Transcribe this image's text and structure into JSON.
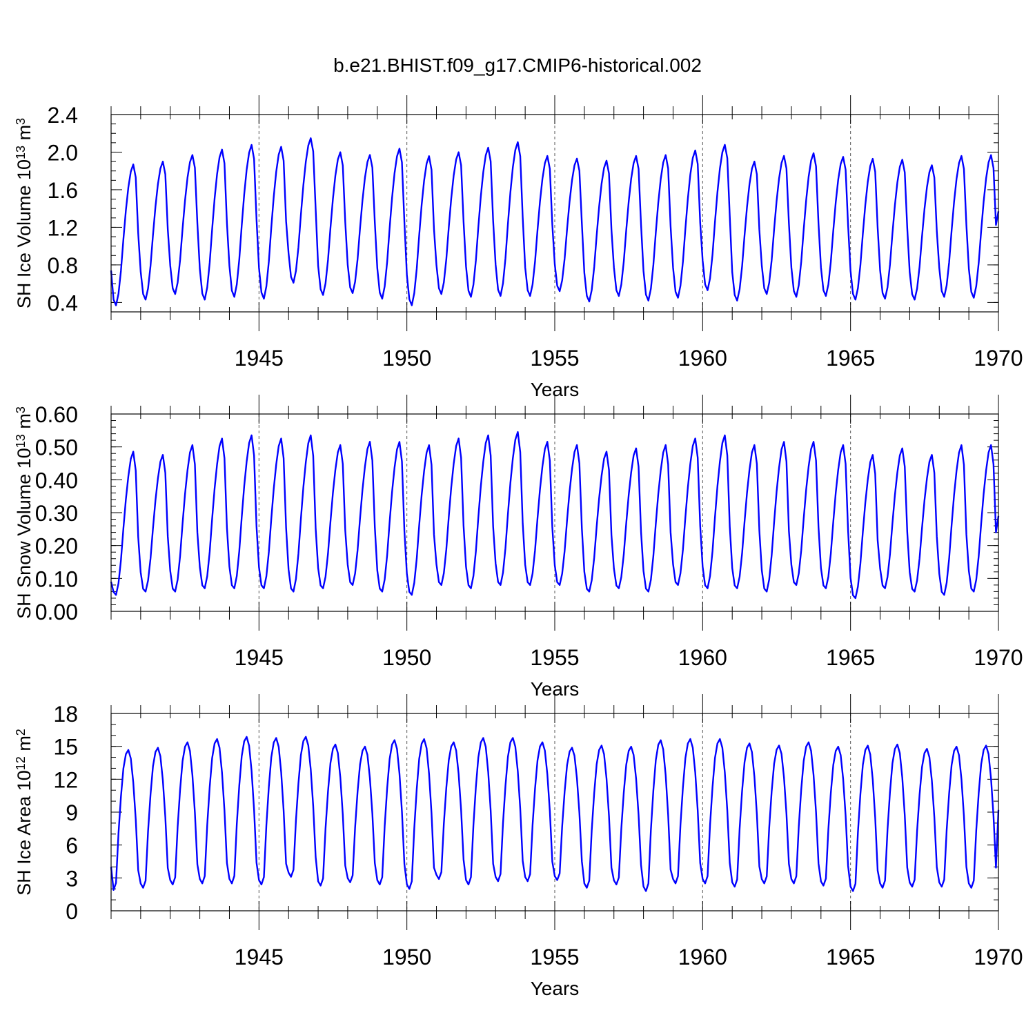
{
  "title": "b.e21.BHIST.f09_g17.CMIP6-historical.002",
  "colors": {
    "series": "#0000ff",
    "axis": "#000000"
  },
  "chart_data": [
    {
      "type": "line",
      "ylabel": "SH Ice Volume 10",
      "ylabel_exp": "13",
      "ylabel_unit": "m",
      "ylabel_unit_exp": "3",
      "xlabel": "Years",
      "xlim": [
        1940.0,
        1970.0
      ],
      "ylim": [
        0.3,
        2.4
      ],
      "yticks": [
        0.4,
        0.8,
        1.2,
        1.6,
        2.0,
        2.4
      ],
      "ytick_labels": [
        "0.4",
        "0.8",
        "1.2",
        "1.6",
        "2.0",
        "2.4"
      ],
      "ytick_minor": 0.1,
      "xticks": [
        1945,
        1950,
        1955,
        1960,
        1965,
        1970
      ],
      "xtick_labels": [
        "1945",
        "1950",
        "1955",
        "1960",
        "1965",
        "1970"
      ],
      "start_year": 1940,
      "monthly_shape": [
        0.2,
        0.04,
        0.0,
        0.08,
        0.24,
        0.46,
        0.66,
        0.82,
        0.93,
        0.98,
        0.89,
        0.5
      ],
      "annual_max": [
        1.9,
        1.93,
        2.0,
        2.06,
        2.11,
        2.09,
        2.18,
        2.03,
        2.0,
        2.07,
        1.99,
        2.03,
        2.08,
        2.14,
        1.99,
        1.96,
        1.94,
        1.99,
        2.0,
        2.05,
        2.11,
        1.93,
        1.99,
        2.02,
        1.98,
        1.96,
        1.95,
        1.89,
        1.99,
        2.0
      ],
      "annual_min": [
        0.37,
        0.43,
        0.49,
        0.43,
        0.46,
        0.44,
        0.61,
        0.48,
        0.5,
        0.44,
        0.37,
        0.49,
        0.46,
        0.47,
        0.47,
        0.52,
        0.41,
        0.47,
        0.42,
        0.45,
        0.53,
        0.42,
        0.49,
        0.46,
        0.47,
        0.43,
        0.44,
        0.43,
        0.46,
        0.45
      ],
      "first_value": 0.74,
      "last_value": 1.37
    },
    {
      "type": "line",
      "ylabel": "SH Snow Volume 10",
      "ylabel_exp": "13",
      "ylabel_unit": "m",
      "ylabel_unit_exp": "3",
      "xlabel": "Years",
      "xlim": [
        1940.0,
        1970.0
      ],
      "ylim": [
        0.0,
        0.6
      ],
      "yticks": [
        0.0,
        0.1,
        0.2,
        0.3,
        0.4,
        0.5,
        0.6
      ],
      "ytick_labels": [
        "0.00",
        "0.10",
        "0.20",
        "0.30",
        "0.40",
        "0.50",
        "0.60"
      ],
      "ytick_minor": 0.02,
      "xticks": [
        1945,
        1950,
        1955,
        1960,
        1965,
        1970
      ],
      "xtick_labels": [
        "1945",
        "1950",
        "1955",
        "1960",
        "1965",
        "1970"
      ],
      "start_year": 1940,
      "monthly_shape": [
        0.14,
        0.02,
        0.0,
        0.08,
        0.24,
        0.46,
        0.66,
        0.82,
        0.94,
        0.99,
        0.86,
        0.4
      ],
      "annual_max": [
        0.49,
        0.48,
        0.51,
        0.53,
        0.54,
        0.53,
        0.54,
        0.51,
        0.52,
        0.52,
        0.51,
        0.53,
        0.54,
        0.55,
        0.52,
        0.51,
        0.49,
        0.5,
        0.51,
        0.53,
        0.54,
        0.51,
        0.52,
        0.52,
        0.51,
        0.48,
        0.5,
        0.48,
        0.51,
        0.51
      ],
      "annual_min": [
        0.05,
        0.06,
        0.06,
        0.07,
        0.07,
        0.07,
        0.06,
        0.07,
        0.08,
        0.06,
        0.05,
        0.08,
        0.07,
        0.08,
        0.08,
        0.08,
        0.06,
        0.07,
        0.06,
        0.08,
        0.07,
        0.07,
        0.06,
        0.08,
        0.07,
        0.04,
        0.07,
        0.06,
        0.05,
        0.06
      ],
      "first_value": 0.09,
      "last_value": 0.29
    },
    {
      "type": "line",
      "ylabel": "SH Ice Area 10",
      "ylabel_exp": "12",
      "ylabel_unit": "m",
      "ylabel_unit_exp": "2",
      "xlabel": "Years",
      "xlim": [
        1940.0,
        1970.0
      ],
      "ylim": [
        0,
        18
      ],
      "yticks": [
        0,
        3,
        6,
        9,
        12,
        15,
        18
      ],
      "ytick_labels": [
        "0",
        "3",
        "6",
        "9",
        "12",
        "15",
        "18"
      ],
      "ytick_minor": 1,
      "xticks": [
        1945,
        1950,
        1955,
        1960,
        1965,
        1970
      ],
      "xtick_labels": [
        "1945",
        "1950",
        "1955",
        "1960",
        "1965",
        "1970"
      ],
      "start_year": 1940,
      "monthly_shape": [
        0.03,
        0.0,
        0.05,
        0.4,
        0.66,
        0.86,
        0.96,
        0.99,
        0.93,
        0.76,
        0.5,
        0.14
      ],
      "annual_max": [
        14.8,
        15.0,
        15.5,
        15.8,
        16.0,
        15.9,
        16.0,
        15.3,
        15.1,
        15.7,
        15.8,
        15.5,
        15.9,
        15.9,
        15.5,
        15.0,
        15.2,
        15.1,
        15.7,
        15.8,
        15.8,
        15.4,
        15.2,
        15.5,
        15.1,
        15.2,
        15.3,
        14.9,
        15.1,
        15.2
      ],
      "annual_min": [
        1.9,
        2.1,
        2.4,
        2.5,
        2.5,
        2.4,
        3.1,
        2.3,
        2.6,
        2.4,
        2.0,
        2.9,
        2.4,
        2.7,
        2.7,
        2.8,
        2.1,
        2.4,
        1.8,
        2.5,
        2.5,
        2.2,
        2.5,
        2.5,
        2.3,
        1.8,
        2.1,
        2.2,
        2.2,
        2.1
      ],
      "first_value": 4.0,
      "last_value": 9.2
    }
  ]
}
